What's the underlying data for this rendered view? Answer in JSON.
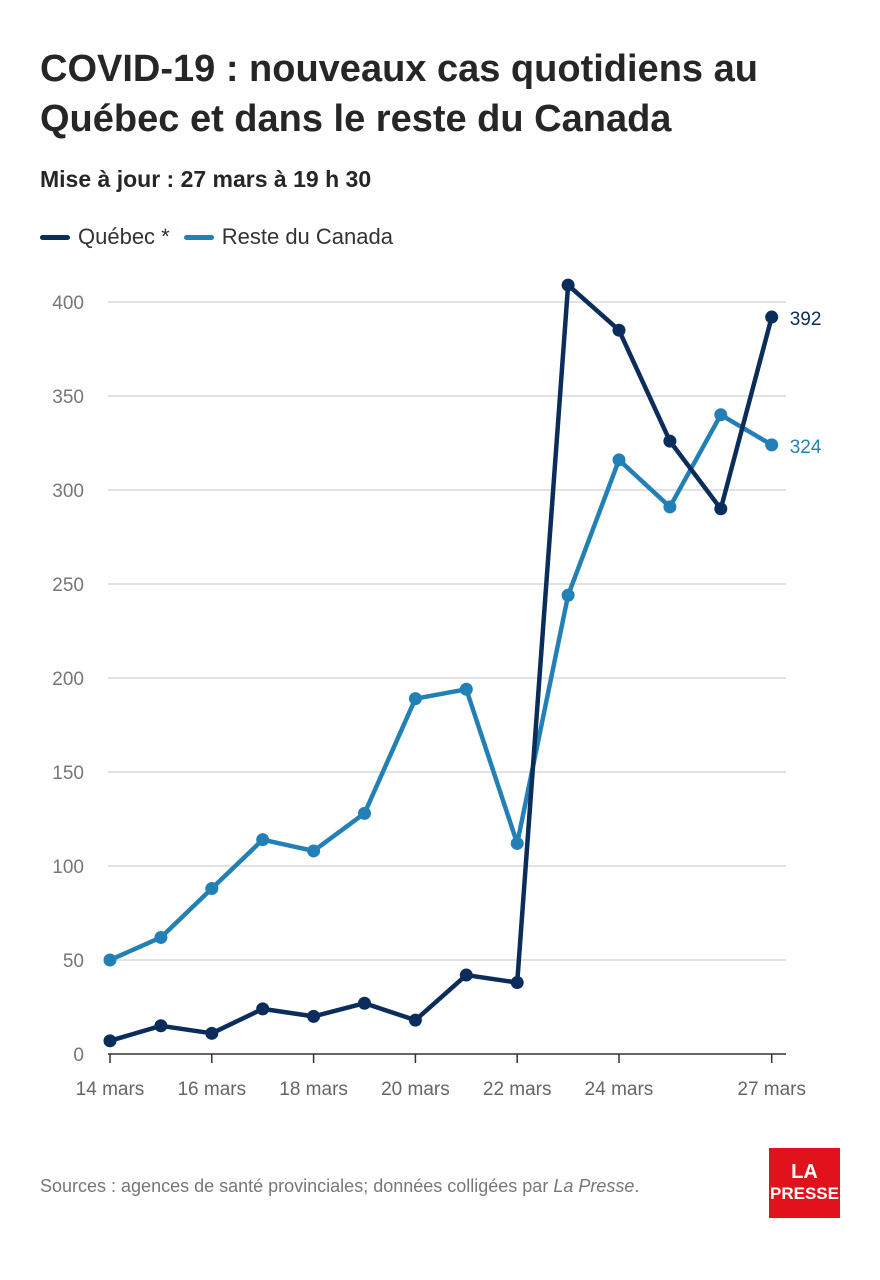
{
  "header": {
    "title": "COVID-19 : nouveaux cas quotidiens au Québec et dans le reste du Canada",
    "subtitle": "Mise à jour : 27 mars à 19 h 30"
  },
  "legend": [
    {
      "label": "Québec *",
      "color": "#0b2d5b"
    },
    {
      "label": "Reste du Canada",
      "color": "#2380b6"
    }
  ],
  "footer": {
    "source_prefix": "Sources : agences de santé provinciales; données colligées par ",
    "source_italic": "La Presse",
    "source_suffix": "."
  },
  "logo": {
    "line1": "LA",
    "line2": "PRESSE"
  },
  "chart_data": {
    "type": "line",
    "x": [
      "14 mars",
      "15 mars",
      "16 mars",
      "17 mars",
      "18 mars",
      "19 mars",
      "20 mars",
      "21 mars",
      "22 mars",
      "23 mars",
      "24 mars",
      "25 mars",
      "26 mars",
      "27 mars"
    ],
    "x_tick_labels": {
      "0": "14 mars",
      "2": "16 mars",
      "4": "18 mars",
      "6": "20 mars",
      "8": "22 mars",
      "10": "24 mars",
      "13": "27 mars"
    },
    "ylim": [
      0,
      400
    ],
    "y_ticks": [
      0,
      50,
      100,
      150,
      200,
      250,
      300,
      350,
      400
    ],
    "grid": true,
    "legend_position": "top-left",
    "series": [
      {
        "name": "Québec *",
        "color": "#0b2d5b",
        "values": [
          7,
          15,
          11,
          24,
          20,
          27,
          18,
          42,
          38,
          409,
          385,
          326,
          290,
          392
        ],
        "end_label": "392"
      },
      {
        "name": "Reste du Canada",
        "color": "#2380b6",
        "values": [
          50,
          62,
          88,
          114,
          108,
          128,
          189,
          194,
          112,
          244,
          316,
          291,
          340,
          324
        ],
        "end_label": "324"
      }
    ]
  }
}
